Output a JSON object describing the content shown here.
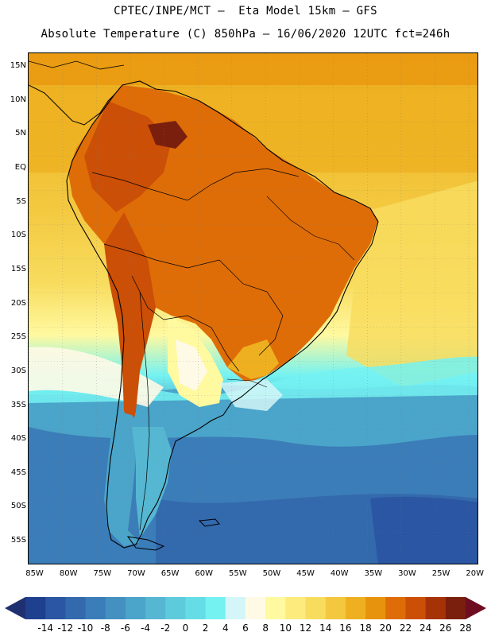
{
  "header": {
    "title_line1": "CPTEC/INPE/MCT –  Eta Model 15km – GFS",
    "title_line2": "Absolute Temperature (C) 850hPa – 16/06/2020 12UTC fct=246h"
  },
  "map": {
    "lat_labels": [
      "15N",
      "10N",
      "5N",
      "EQ",
      "5S",
      "10S",
      "15S",
      "20S",
      "25S",
      "30S",
      "35S",
      "40S",
      "45S",
      "50S",
      "55S"
    ],
    "lon_labels": [
      "85W",
      "80W",
      "75W",
      "70W",
      "65W",
      "60W",
      "55W",
      "50W",
      "45W",
      "40W",
      "35W",
      "30W",
      "25W",
      "20W"
    ],
    "extent_deg": {
      "lon_min": -86,
      "lon_max": -19.5,
      "lat_min": -58.5,
      "lat_max": 17
    }
  },
  "colorbar": {
    "ticks": [
      "-14",
      "-12",
      "-10",
      "-8",
      "-6",
      "-4",
      "-2",
      "0",
      "2",
      "4",
      "6",
      "8",
      "10",
      "12",
      "14",
      "16",
      "18",
      "20",
      "22",
      "24",
      "26",
      "28"
    ],
    "colors": [
      "#1f3f8f",
      "#2a56a3",
      "#3369ad",
      "#3b7db8",
      "#4390c1",
      "#4ba4c9",
      "#55b7d2",
      "#5ecbdc",
      "#66dde6",
      "#74f2f2",
      "#d4f6f8",
      "#fffae6",
      "#fff9a0",
      "#fdeb7e",
      "#f8dc5e",
      "#f3c83f",
      "#eeb020",
      "#e8930d",
      "#de6d08",
      "#cb4f06",
      "#a63208",
      "#7a1f0e"
    ],
    "under_color": "#1f3070",
    "over_color": "#6e0d20"
  }
}
